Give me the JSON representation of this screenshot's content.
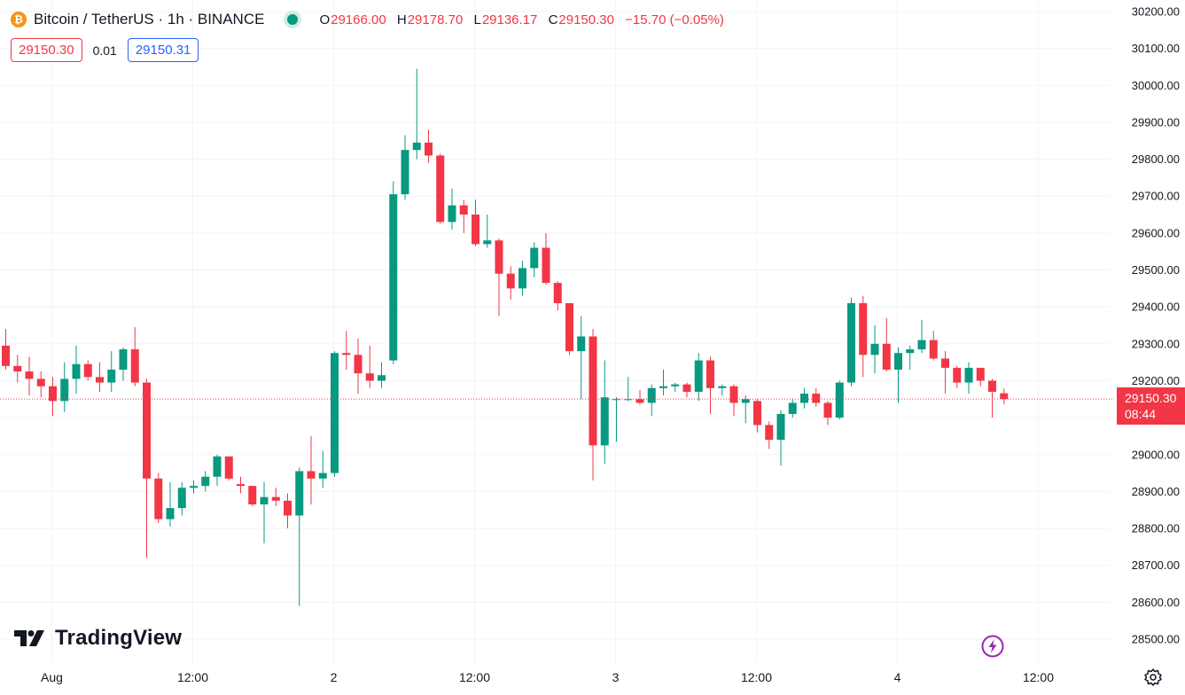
{
  "header": {
    "coin_glyph": "₿",
    "symbol": "Bitcoin / TetherUS · 1h · BINANCE",
    "ohlc": {
      "o_label": "O",
      "o": "29166.00",
      "h_label": "H",
      "h": "29178.70",
      "l_label": "L",
      "l": "29136.17",
      "c_label": "C",
      "c": "29150.30",
      "change": "−15.70 (−0.05%)"
    }
  },
  "trade": {
    "sell_price": "29150.30",
    "spread": "0.01",
    "buy_price": "29150.31"
  },
  "last_price": {
    "price": "29150.30",
    "countdown": "08:44"
  },
  "branding": {
    "logo_text": "TradingView"
  },
  "colors": {
    "up": "#089981",
    "down": "#f23645",
    "grid": "#f0f3fa",
    "sell": "#f23645",
    "buy": "#2962ff"
  },
  "icons": {
    "status": "status-dot-icon",
    "flash": "flash-icon",
    "settings": "gear-icon"
  },
  "chart_data": {
    "type": "candlestick",
    "title": "Bitcoin / TetherUS · 1h · BINANCE",
    "x_ticks": [
      {
        "label": "Aug",
        "index": 2
      },
      {
        "label": "12:00",
        "index": 14
      },
      {
        "label": "2",
        "index": 26
      },
      {
        "label": "12:00",
        "index": 38
      },
      {
        "label": "3",
        "index": 50
      },
      {
        "label": "12:00",
        "index": 62
      },
      {
        "label": "4",
        "index": 74
      },
      {
        "label": "12:00",
        "index": 86
      }
    ],
    "y_ticks": [
      "28500.00",
      "28600.00",
      "28700.00",
      "28800.00",
      "28900.00",
      "29000.00",
      "29100.00",
      "29200.00",
      "29300.00",
      "29400.00",
      "29500.00",
      "29600.00",
      "29700.00",
      "29800.00",
      "29900.00",
      "30000.00",
      "30100.00",
      "30200.00"
    ],
    "ylim": [
      28460,
      30250
    ],
    "last_price": 29150.3,
    "grid": true,
    "candles": [
      {
        "o": 29295,
        "h": 29340,
        "l": 29230,
        "c": 29240
      },
      {
        "o": 29240,
        "h": 29270,
        "l": 29195,
        "c": 29225
      },
      {
        "o": 29225,
        "h": 29265,
        "l": 29160,
        "c": 29205
      },
      {
        "o": 29205,
        "h": 29225,
        "l": 29155,
        "c": 29185
      },
      {
        "o": 29185,
        "h": 29210,
        "l": 29105,
        "c": 29145
      },
      {
        "o": 29145,
        "h": 29250,
        "l": 29115,
        "c": 29205
      },
      {
        "o": 29205,
        "h": 29295,
        "l": 29165,
        "c": 29245
      },
      {
        "o": 29245,
        "h": 29255,
        "l": 29200,
        "c": 29210
      },
      {
        "o": 29210,
        "h": 29250,
        "l": 29170,
        "c": 29195
      },
      {
        "o": 29195,
        "h": 29280,
        "l": 29170,
        "c": 29230
      },
      {
        "o": 29230,
        "h": 29290,
        "l": 29200,
        "c": 29285
      },
      {
        "o": 29285,
        "h": 29345,
        "l": 29185,
        "c": 29195
      },
      {
        "o": 29195,
        "h": 29205,
        "l": 28720,
        "c": 28935
      },
      {
        "o": 28935,
        "h": 28950,
        "l": 28815,
        "c": 28825
      },
      {
        "o": 28825,
        "h": 28925,
        "l": 28805,
        "c": 28855
      },
      {
        "o": 28855,
        "h": 28925,
        "l": 28835,
        "c": 28910
      },
      {
        "o": 28910,
        "h": 28930,
        "l": 28895,
        "c": 28915
      },
      {
        "o": 28915,
        "h": 28955,
        "l": 28900,
        "c": 28940
      },
      {
        "o": 28940,
        "h": 29000,
        "l": 28915,
        "c": 28995
      },
      {
        "o": 28995,
        "h": 28995,
        "l": 28930,
        "c": 28935
      },
      {
        "o": 28920,
        "h": 28940,
        "l": 28895,
        "c": 28915
      },
      {
        "o": 28915,
        "h": 28915,
        "l": 28860,
        "c": 28865
      },
      {
        "o": 28865,
        "h": 28925,
        "l": 28760,
        "c": 28885
      },
      {
        "o": 28885,
        "h": 28910,
        "l": 28860,
        "c": 28875
      },
      {
        "o": 28875,
        "h": 28895,
        "l": 28800,
        "c": 28835
      },
      {
        "o": 28835,
        "h": 28965,
        "l": 28590,
        "c": 28955
      },
      {
        "o": 28955,
        "h": 29050,
        "l": 28865,
        "c": 28935
      },
      {
        "o": 28935,
        "h": 29010,
        "l": 28910,
        "c": 28950
      },
      {
        "o": 28950,
        "h": 29280,
        "l": 28940,
        "c": 29275
      },
      {
        "o": 29275,
        "h": 29335,
        "l": 29230,
        "c": 29270
      },
      {
        "o": 29270,
        "h": 29315,
        "l": 29165,
        "c": 29220
      },
      {
        "o": 29220,
        "h": 29295,
        "l": 29180,
        "c": 29200
      },
      {
        "o": 29200,
        "h": 29250,
        "l": 29180,
        "c": 29215
      },
      {
        "o": 29255,
        "h": 29740,
        "l": 29245,
        "c": 29705
      },
      {
        "o": 29705,
        "h": 29865,
        "l": 29690,
        "c": 29825
      },
      {
        "o": 29825,
        "h": 30045,
        "l": 29800,
        "c": 29845
      },
      {
        "o": 29845,
        "h": 29880,
        "l": 29790,
        "c": 29810
      },
      {
        "o": 29810,
        "h": 29815,
        "l": 29625,
        "c": 29630
      },
      {
        "o": 29630,
        "h": 29720,
        "l": 29610,
        "c": 29675
      },
      {
        "o": 29675,
        "h": 29690,
        "l": 29600,
        "c": 29650
      },
      {
        "o": 29650,
        "h": 29690,
        "l": 29565,
        "c": 29570
      },
      {
        "o": 29570,
        "h": 29650,
        "l": 29560,
        "c": 29580
      },
      {
        "o": 29580,
        "h": 29585,
        "l": 29375,
        "c": 29490
      },
      {
        "o": 29490,
        "h": 29510,
        "l": 29420,
        "c": 29450
      },
      {
        "o": 29450,
        "h": 29525,
        "l": 29430,
        "c": 29505
      },
      {
        "o": 29505,
        "h": 29575,
        "l": 29480,
        "c": 29560
      },
      {
        "o": 29560,
        "h": 29600,
        "l": 29460,
        "c": 29465
      },
      {
        "o": 29465,
        "h": 29470,
        "l": 29390,
        "c": 29410
      },
      {
        "o": 29410,
        "h": 29410,
        "l": 29270,
        "c": 29280
      },
      {
        "o": 29280,
        "h": 29375,
        "l": 29150,
        "c": 29320
      },
      {
        "o": 29320,
        "h": 29340,
        "l": 28930,
        "c": 29025
      },
      {
        "o": 29025,
        "h": 29255,
        "l": 28975,
        "c": 29155
      },
      {
        "o": 29150,
        "h": 29155,
        "l": 29035,
        "c": 29150
      },
      {
        "o": 29150,
        "h": 29210,
        "l": 29145,
        "c": 29150
      },
      {
        "o": 29150,
        "h": 29175,
        "l": 29135,
        "c": 29140
      },
      {
        "o": 29140,
        "h": 29190,
        "l": 29105,
        "c": 29180
      },
      {
        "o": 29180,
        "h": 29230,
        "l": 29160,
        "c": 29185
      },
      {
        "o": 29185,
        "h": 29195,
        "l": 29170,
        "c": 29190
      },
      {
        "o": 29190,
        "h": 29195,
        "l": 29155,
        "c": 29170
      },
      {
        "o": 29170,
        "h": 29275,
        "l": 29145,
        "c": 29255
      },
      {
        "o": 29255,
        "h": 29265,
        "l": 29110,
        "c": 29180
      },
      {
        "o": 29180,
        "h": 29190,
        "l": 29160,
        "c": 29185
      },
      {
        "o": 29185,
        "h": 29190,
        "l": 29105,
        "c": 29140
      },
      {
        "o": 29140,
        "h": 29160,
        "l": 29085,
        "c": 29150
      },
      {
        "o": 29145,
        "h": 29150,
        "l": 29060,
        "c": 29080
      },
      {
        "o": 29080,
        "h": 29090,
        "l": 29015,
        "c": 29040
      },
      {
        "o": 29040,
        "h": 29120,
        "l": 28970,
        "c": 29110
      },
      {
        "o": 29110,
        "h": 29150,
        "l": 29100,
        "c": 29140
      },
      {
        "o": 29140,
        "h": 29180,
        "l": 29125,
        "c": 29165
      },
      {
        "o": 29165,
        "h": 29180,
        "l": 29130,
        "c": 29140
      },
      {
        "o": 29140,
        "h": 29145,
        "l": 29080,
        "c": 29100
      },
      {
        "o": 29100,
        "h": 29200,
        "l": 29095,
        "c": 29195
      },
      {
        "o": 29195,
        "h": 29425,
        "l": 29185,
        "c": 29410
      },
      {
        "o": 29410,
        "h": 29430,
        "l": 29210,
        "c": 29270
      },
      {
        "o": 29270,
        "h": 29350,
        "l": 29220,
        "c": 29300
      },
      {
        "o": 29300,
        "h": 29370,
        "l": 29225,
        "c": 29230
      },
      {
        "o": 29230,
        "h": 29290,
        "l": 29140,
        "c": 29275
      },
      {
        "o": 29275,
        "h": 29295,
        "l": 29230,
        "c": 29285
      },
      {
        "o": 29285,
        "h": 29365,
        "l": 29275,
        "c": 29310
      },
      {
        "o": 29310,
        "h": 29335,
        "l": 29255,
        "c": 29260
      },
      {
        "o": 29260,
        "h": 29280,
        "l": 29165,
        "c": 29235
      },
      {
        "o": 29235,
        "h": 29240,
        "l": 29180,
        "c": 29195
      },
      {
        "o": 29195,
        "h": 29250,
        "l": 29165,
        "c": 29235
      },
      {
        "o": 29235,
        "h": 29235,
        "l": 29185,
        "c": 29200
      },
      {
        "o": 29200,
        "h": 29205,
        "l": 29100,
        "c": 29170
      },
      {
        "o": 29166,
        "h": 29178.7,
        "l": 29136.17,
        "c": 29150.3
      }
    ]
  }
}
